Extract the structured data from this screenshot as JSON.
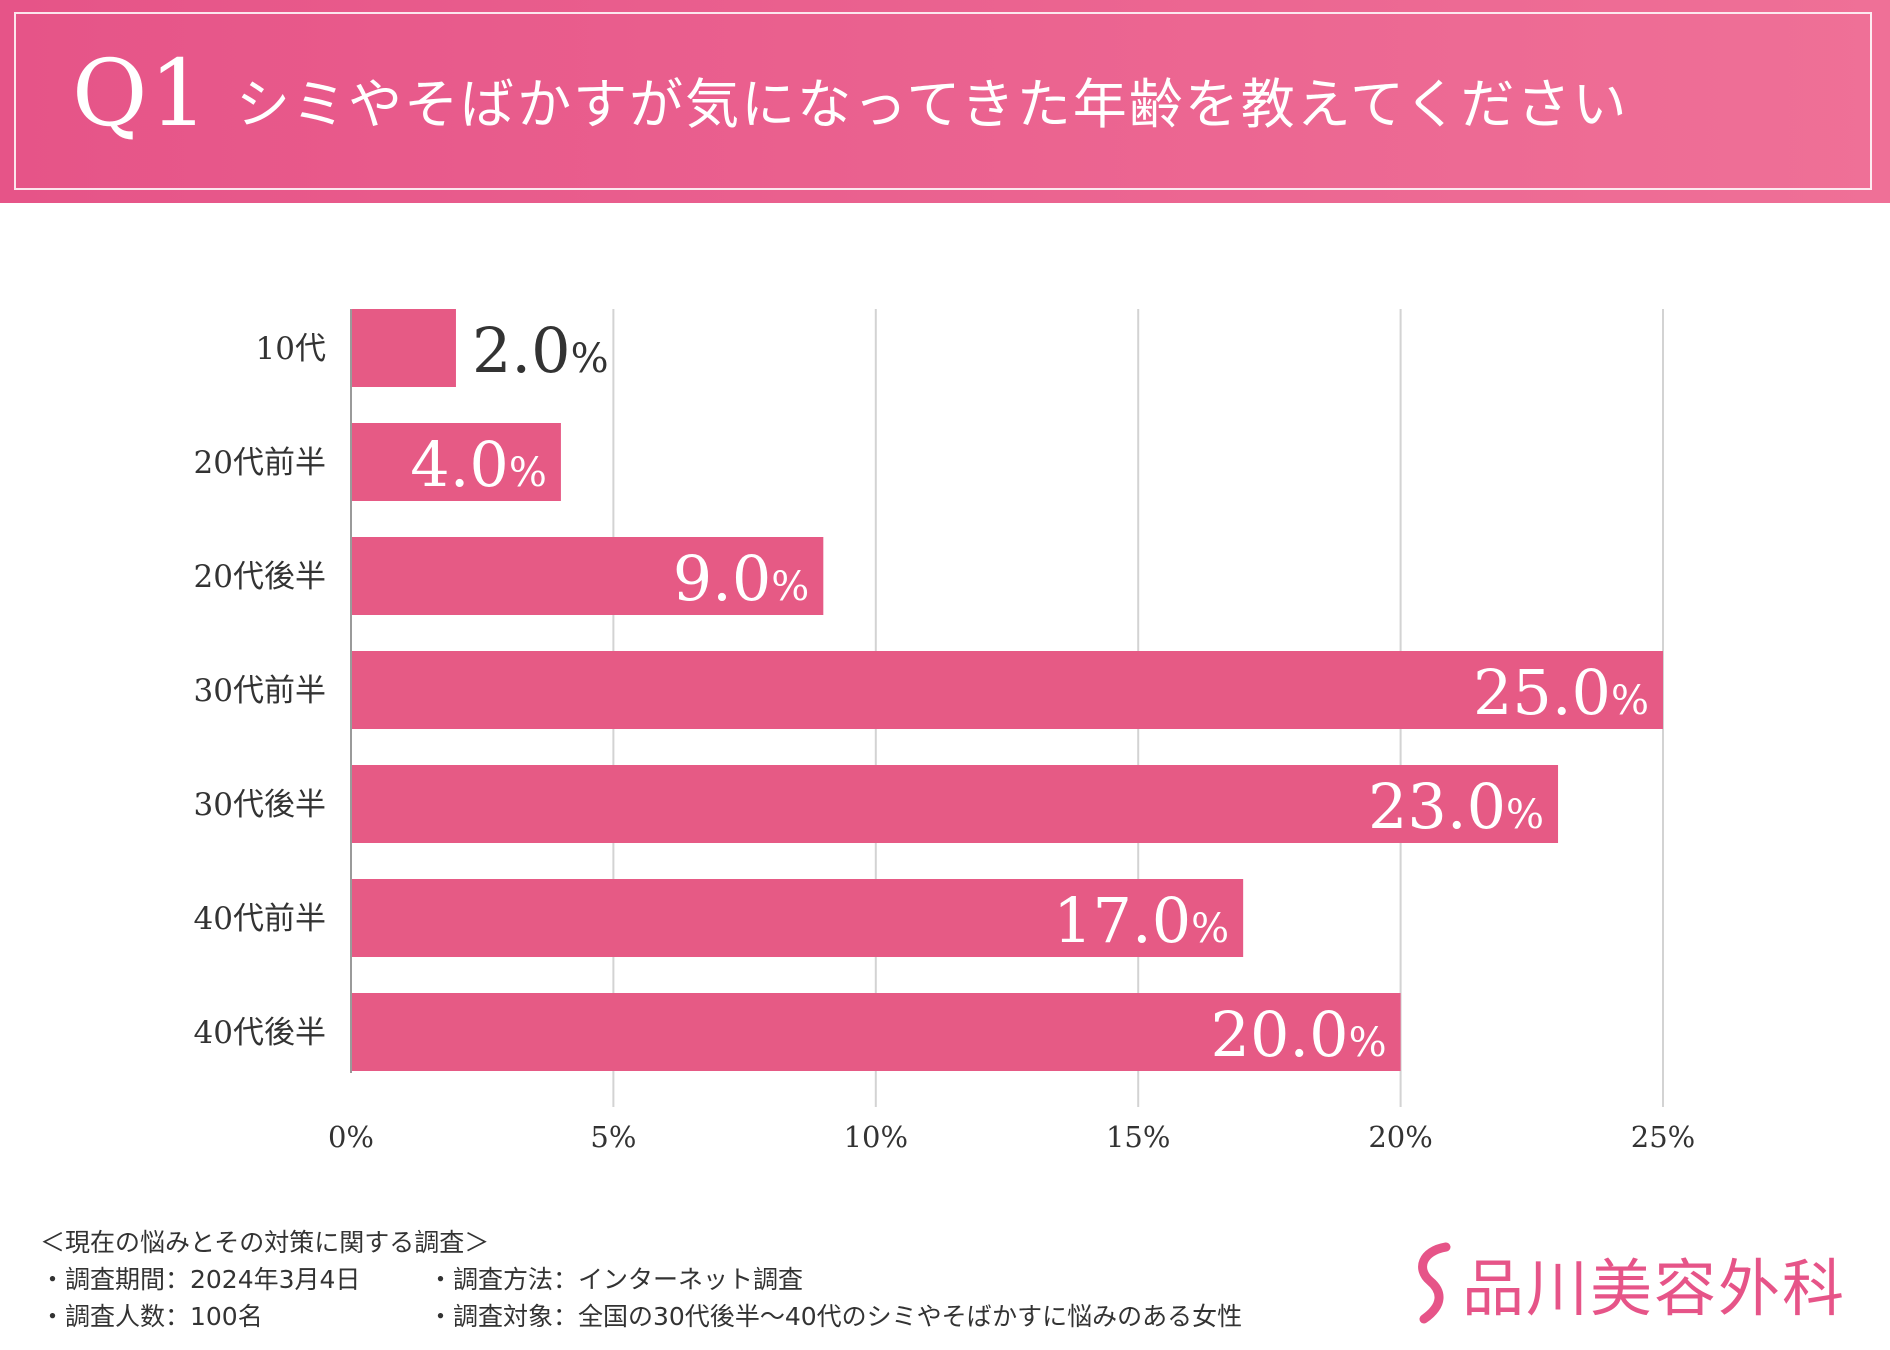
{
  "header": {
    "q_number": "Q1",
    "question": "シミやそばかすが気になってきた年齢を教えてください"
  },
  "chart_data": {
    "type": "bar",
    "orientation": "horizontal",
    "categories": [
      "10代",
      "20代前半",
      "20代後半",
      "30代前半",
      "30代後半",
      "40代前半",
      "40代後半"
    ],
    "values": [
      2.0,
      4.0,
      9.0,
      25.0,
      23.0,
      17.0,
      20.0
    ],
    "value_labels": [
      "2.0",
      "4.0",
      "9.0",
      "25.0",
      "23.0",
      "17.0",
      "20.0"
    ],
    "value_unit": "%",
    "xlim": [
      0,
      25
    ],
    "xticks": [
      0,
      5,
      10,
      15,
      20,
      25
    ],
    "xtick_labels": [
      "0%",
      "5%",
      "10%",
      "15%",
      "20%",
      "25%"
    ],
    "grid": "vertical",
    "bar_color": "#e65a85",
    "title": "",
    "xlabel": "",
    "ylabel": ""
  },
  "footer": {
    "survey_title": "＜現在の悩みとその対策に関する調査＞",
    "period": "・調査期間：2024年3月4日",
    "method": "・調査方法：インターネット調査",
    "respondents": "・調査人数：100名",
    "target": "・調査対象：全国の30代後半〜40代のシミやそばかすに悩みのある女性"
  },
  "logo": {
    "text": "品川美容外科",
    "color": "#e65488"
  }
}
